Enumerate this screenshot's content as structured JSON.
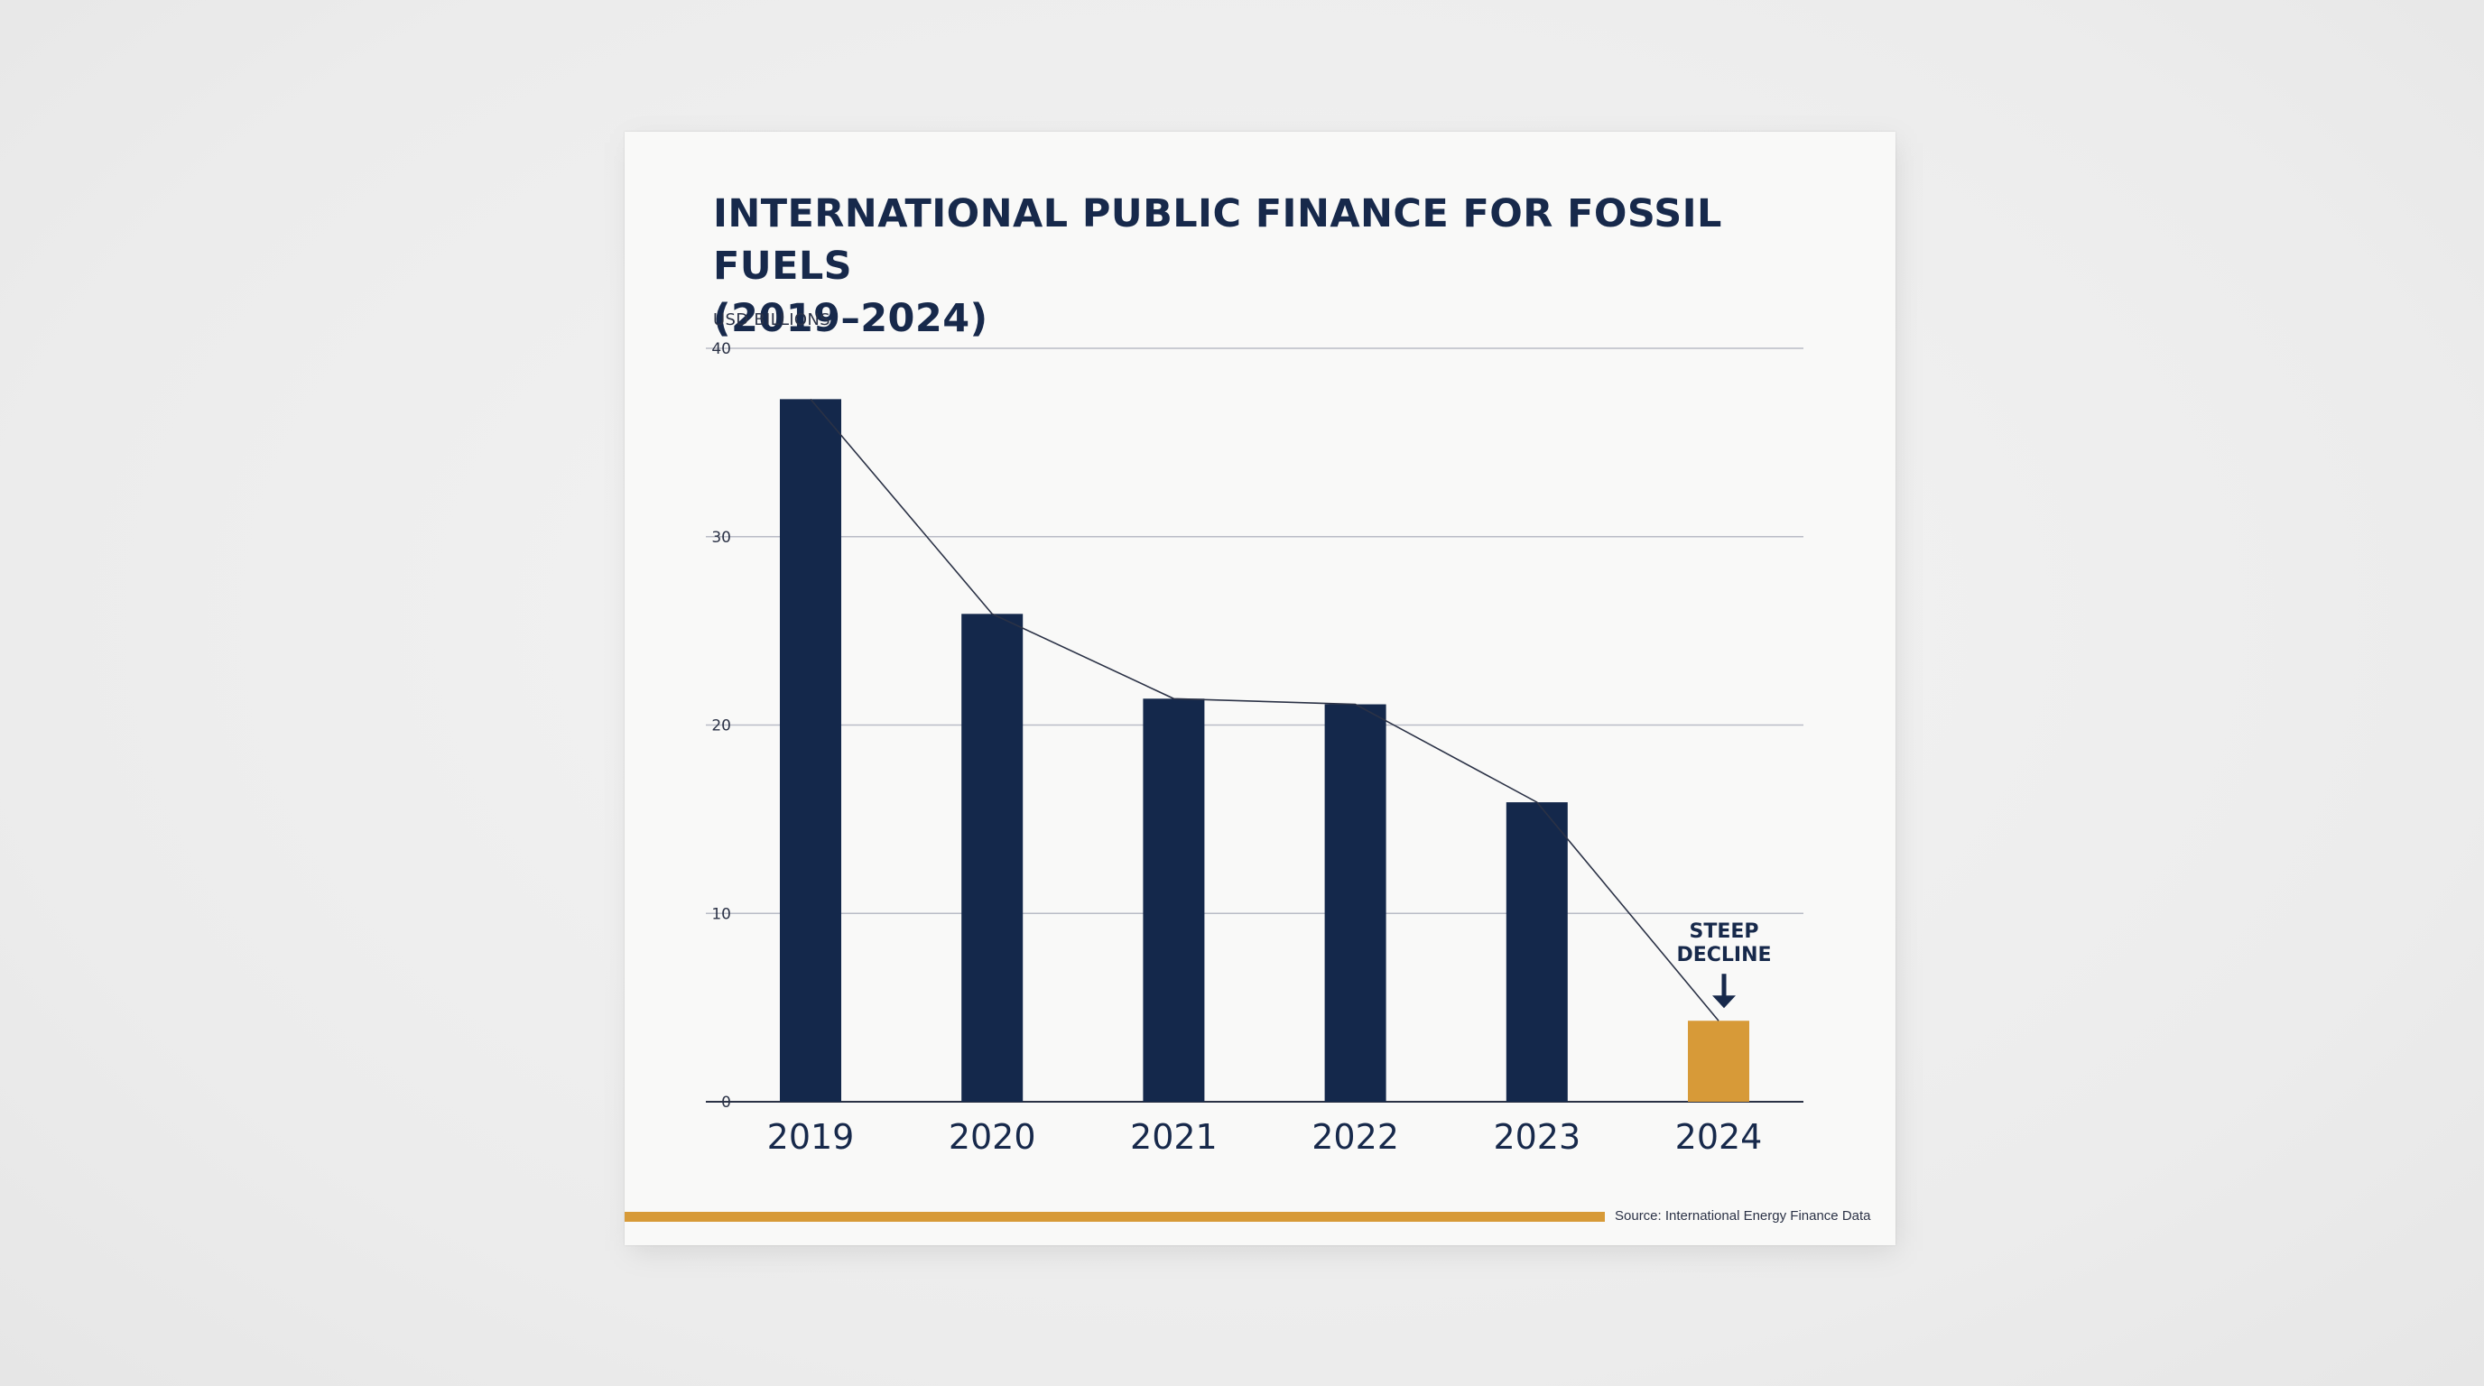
{
  "document": {
    "title_lines": [
      "INTERNATIONAL PUBLIC FINANCE FOR FOSSIL FUELS",
      "(2019–2024)"
    ],
    "unit_label": "USD BILLIONS",
    "source": "Source: International Energy Finance Data",
    "accent_color": "#d79a38"
  },
  "chart_data": {
    "type": "bar",
    "title": "INTERNATIONAL PUBLIC FINANCE FOR FOSSIL FUELS (2019–2024)",
    "ylabel": "USD BILLIONS",
    "xlabel": "",
    "categories": [
      "2019",
      "2020",
      "2021",
      "2022",
      "2023",
      "2024"
    ],
    "values": [
      37.3,
      25.9,
      21.4,
      21.1,
      15.9,
      4.3
    ],
    "ylim": [
      0,
      40
    ],
    "yticks": [
      0,
      10,
      20,
      30,
      40
    ],
    "grid": true,
    "trend_line": true,
    "bar_color": "#14284b",
    "highlight_color": "#d79a38",
    "highlight_index": 5,
    "annotation": {
      "lines": [
        "STEEP",
        "DECLINE"
      ],
      "target_index": 5,
      "arrow": "down"
    }
  }
}
